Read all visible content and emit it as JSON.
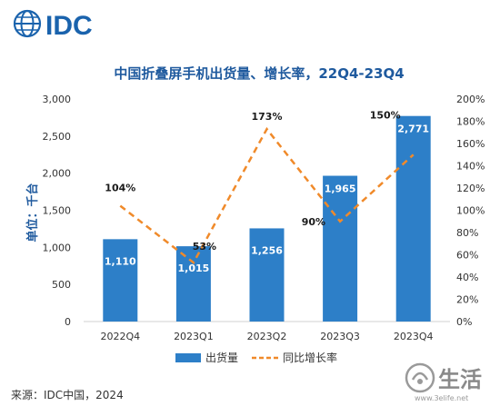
{
  "logo_text": "IDC",
  "source": "来源：IDC中国，2024",
  "watermark_text": "生活",
  "watermark_url": "www.3elife.net",
  "colors": {
    "bar": "#2d7fc8",
    "line": "#f08a2a",
    "title": "#1f5a9e",
    "axis": "#1f5a9e",
    "text": "#333333"
  },
  "chart_data": {
    "type": "bar",
    "title": "中国折叠屏手机出货量、增长率，22Q4-23Q4",
    "categories": [
      "2022Q4",
      "2023Q1",
      "2023Q2",
      "2023Q3",
      "2023Q4"
    ],
    "ylabel": "单位：千台",
    "ylim": [
      0,
      3000
    ],
    "yticks": [
      "0",
      "500",
      "1,000",
      "1,500",
      "2,000",
      "2,500",
      "3,000"
    ],
    "y2lim": [
      0,
      200
    ],
    "y2ticks": [
      "0%",
      "20%",
      "40%",
      "60%",
      "80%",
      "100%",
      "120%",
      "140%",
      "160%",
      "180%",
      "200%"
    ],
    "grid": false,
    "legend": "bottom",
    "series": [
      {
        "name": "出货量",
        "type": "bar",
        "axis": "left",
        "values": [
          1110,
          1015,
          1256,
          1965,
          2771
        ],
        "labels": [
          "1,110",
          "1,015",
          "1,256",
          "1,965",
          "2,771"
        ]
      },
      {
        "name": "同比增长率",
        "type": "line",
        "axis": "right",
        "values": [
          104,
          53,
          173,
          90,
          150
        ],
        "labels": [
          "104%",
          "53%",
          "173%",
          "90%",
          "150%"
        ]
      }
    ]
  }
}
